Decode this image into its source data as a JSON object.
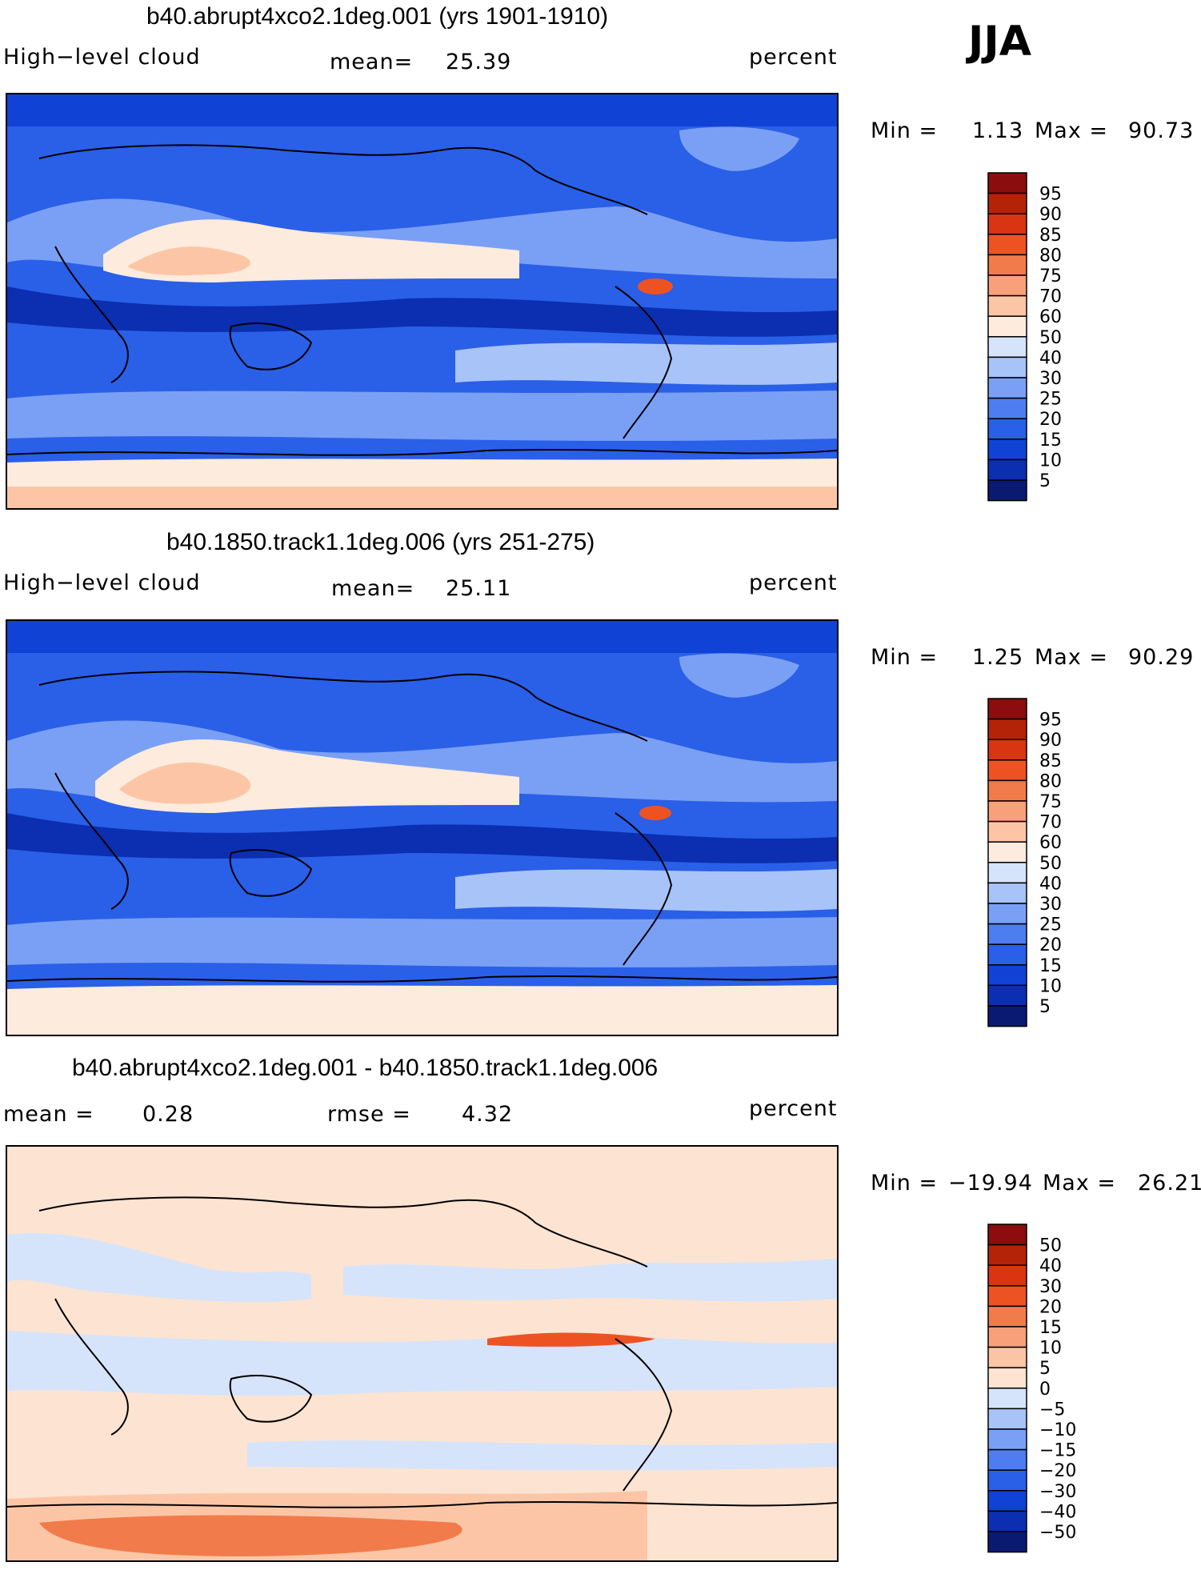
{
  "season": "JJA",
  "colors": {
    "abs_scale": [
      "#0a1a73",
      "#0b2fb0",
      "#1142d6",
      "#2a5fe8",
      "#4d7df0",
      "#7aa0f5",
      "#a8c3f7",
      "#d5e4fb",
      "#fdebdd",
      "#fcc6a6",
      "#f7a07a",
      "#f27b4b",
      "#ed5322",
      "#d93512",
      "#b42308",
      "#8b0d0d"
    ],
    "diff_scale": [
      "#0a1a73",
      "#0b2fb0",
      "#1142d6",
      "#2a5fe8",
      "#4d7df0",
      "#7aa0f5",
      "#a8c3f7",
      "#d5e4fb",
      "#fde3d1",
      "#fcc6a6",
      "#f7a07a",
      "#f27b4b",
      "#ed5322",
      "#d93512",
      "#b42308",
      "#8b0d0d"
    ]
  },
  "chart_data": [
    {
      "type": "heatmap",
      "title": "b40.abrupt4xco2.1deg.001 (yrs 1901-1910)",
      "left_label": "High−level cloud",
      "mean_label": "mean=",
      "mean_value": "25.39",
      "units": "percent",
      "min_label": "Min =",
      "min_value": "1.13",
      "max_label": "Max =",
      "max_value": "90.73",
      "levels": [
        "95",
        "90",
        "85",
        "80",
        "75",
        "70",
        "60",
        "50",
        "40",
        "30",
        "25",
        "20",
        "15",
        "10",
        "5"
      ],
      "field_mean": 25.39,
      "field_min": 1.13,
      "field_max": 90.73
    },
    {
      "type": "heatmap",
      "title": "b40.1850.track1.1deg.006 (yrs 251-275)",
      "left_label": "High−level cloud",
      "mean_label": "mean=",
      "mean_value": "25.11",
      "units": "percent",
      "min_label": "Min =",
      "min_value": "1.25",
      "max_label": "Max =",
      "max_value": "90.29",
      "levels": [
        "95",
        "90",
        "85",
        "80",
        "75",
        "70",
        "60",
        "50",
        "40",
        "30",
        "25",
        "20",
        "15",
        "10",
        "5"
      ],
      "field_mean": 25.11,
      "field_min": 1.25,
      "field_max": 90.29
    },
    {
      "type": "heatmap",
      "title": "b40.abrupt4xco2.1deg.001 - b40.1850.track1.1deg.006",
      "left_label": "mean =",
      "mean_label": "",
      "mean_value": "0.28",
      "rmse_label": "rmse =",
      "rmse_value": "4.32",
      "units": "percent",
      "min_label": "Min =",
      "min_value": "−19.94",
      "max_label": "Max =",
      "max_value": "26.21",
      "levels": [
        "50",
        "40",
        "30",
        "20",
        "15",
        "10",
        "5",
        "0",
        "−5",
        "−10",
        "−15",
        "−20",
        "−30",
        "−40",
        "−50"
      ],
      "field_mean": 0.28,
      "field_min": -19.94,
      "field_max": 26.21
    }
  ]
}
